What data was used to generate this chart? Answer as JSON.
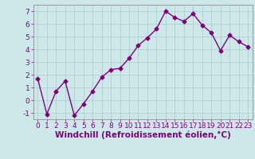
{
  "x": [
    0,
    1,
    2,
    3,
    4,
    5,
    6,
    7,
    8,
    9,
    10,
    11,
    12,
    13,
    14,
    15,
    16,
    17,
    18,
    19,
    20,
    21,
    22,
    23
  ],
  "y": [
    1.7,
    -1.1,
    0.7,
    1.5,
    -1.2,
    -0.3,
    0.7,
    1.8,
    2.4,
    2.5,
    3.3,
    4.3,
    4.9,
    5.6,
    7.0,
    6.5,
    6.2,
    6.8,
    5.9,
    5.3,
    3.9,
    5.1,
    4.6,
    4.2
  ],
  "line_color": "#800080",
  "marker": "D",
  "marker_size": 2.5,
  "bg_color": "#cce8e8",
  "grid_color": "#aacccc",
  "xlabel": "Windchill (Refroidissement éolien,°C)",
  "xlim": [
    -0.5,
    23.5
  ],
  "ylim": [
    -1.5,
    7.5
  ],
  "yticks": [
    -1,
    0,
    1,
    2,
    3,
    4,
    5,
    6,
    7
  ],
  "xticks": [
    0,
    1,
    2,
    3,
    4,
    5,
    6,
    7,
    8,
    9,
    10,
    11,
    12,
    13,
    14,
    15,
    16,
    17,
    18,
    19,
    20,
    21,
    22,
    23
  ],
  "tick_color": "#800080",
  "label_color": "#800080",
  "axis_color": "#808080",
  "font_size": 6.5,
  "xlabel_fontsize": 7.5,
  "linewidth": 1.0
}
